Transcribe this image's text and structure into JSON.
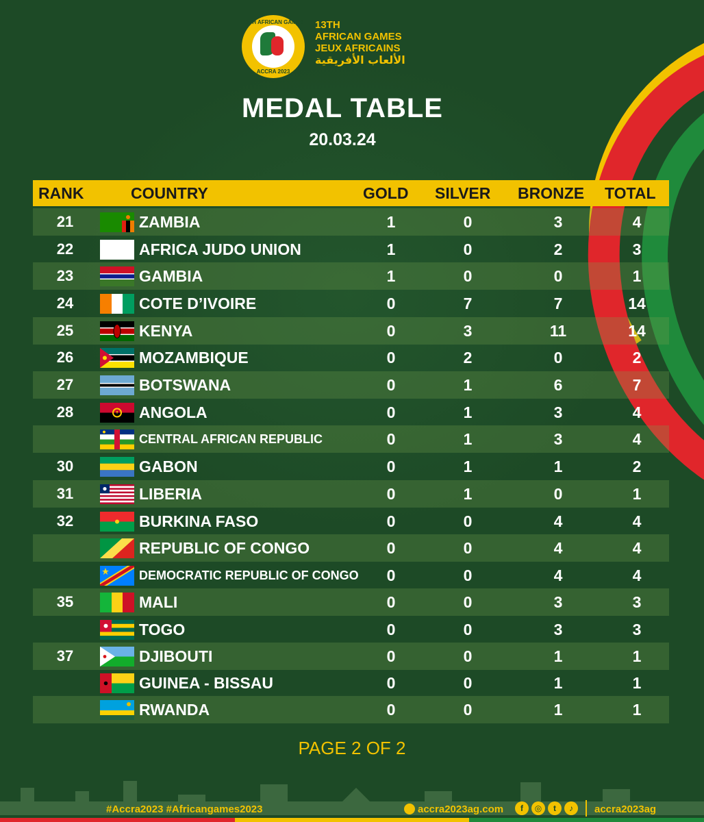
{
  "logo": {
    "ring_top": "13TH AFRICAN GAMES",
    "ring_bottom": "ACCRA 2023"
  },
  "brand": {
    "line1": "13TH",
    "line2": "AFRICAN GAMES",
    "line3": "JEUX AFRICAINS",
    "line4": "الألعاب الأفريقية"
  },
  "title": "MEDAL TABLE",
  "date": "20.03.24",
  "columns": {
    "rank": "RANK",
    "country": "COUNTRY",
    "gold": "GOLD",
    "silver": "SILVER",
    "bronze": "BRONZE",
    "total": "TOTAL"
  },
  "rows": [
    {
      "rank": "21",
      "country": "ZAMBIA",
      "gold": "1",
      "silver": "0",
      "bronze": "3",
      "total": "4",
      "flag": "zambia-flag"
    },
    {
      "rank": "22",
      "country": "AFRICA JUDO UNION",
      "gold": "1",
      "silver": "0",
      "bronze": "2",
      "total": "3",
      "flag": "blank-flag"
    },
    {
      "rank": "23",
      "country": "GAMBIA",
      "gold": "1",
      "silver": "0",
      "bronze": "0",
      "total": "1",
      "flag": "gambia-flag"
    },
    {
      "rank": "24",
      "country": "COTE D’IVOIRE",
      "gold": "0",
      "silver": "7",
      "bronze": "7",
      "total": "14",
      "flag": "cote-divoire-flag"
    },
    {
      "rank": "25",
      "country": "KENYA",
      "gold": "0",
      "silver": "3",
      "bronze": "11",
      "total": "14",
      "flag": "kenya-flag"
    },
    {
      "rank": "26",
      "country": "MOZAMBIQUE",
      "gold": "0",
      "silver": "2",
      "bronze": "0",
      "total": "2",
      "flag": "mozambique-flag"
    },
    {
      "rank": "27",
      "country": "BOTSWANA",
      "gold": "0",
      "silver": "1",
      "bronze": "6",
      "total": "7",
      "flag": "botswana-flag"
    },
    {
      "rank": "28",
      "country": "ANGOLA",
      "gold": "0",
      "silver": "1",
      "bronze": "3",
      "total": "4",
      "flag": "angola-flag"
    },
    {
      "rank": "",
      "country": "CENTRAL AFRICAN REPUBLIC",
      "gold": "0",
      "silver": "1",
      "bronze": "3",
      "total": "4",
      "flag": "car-flag"
    },
    {
      "rank": "30",
      "country": "GABON",
      "gold": "0",
      "silver": "1",
      "bronze": "1",
      "total": "2",
      "flag": "gabon-flag"
    },
    {
      "rank": "31",
      "country": "LIBERIA",
      "gold": "0",
      "silver": "1",
      "bronze": "0",
      "total": "1",
      "flag": "liberia-flag"
    },
    {
      "rank": "32",
      "country": "BURKINA FASO",
      "gold": "0",
      "silver": "0",
      "bronze": "4",
      "total": "4",
      "flag": "burkina-faso-flag"
    },
    {
      "rank": "",
      "country": "REPUBLIC OF CONGO",
      "gold": "0",
      "silver": "0",
      "bronze": "4",
      "total": "4",
      "flag": "congo-flag"
    },
    {
      "rank": "",
      "country": "DEMOCRATIC REPUBLIC OF CONGO",
      "gold": "0",
      "silver": "0",
      "bronze": "4",
      "total": "4",
      "flag": "drc-flag"
    },
    {
      "rank": "35",
      "country": "MALI",
      "gold": "0",
      "silver": "0",
      "bronze": "3",
      "total": "3",
      "flag": "mali-flag"
    },
    {
      "rank": "",
      "country": "TOGO",
      "gold": "0",
      "silver": "0",
      "bronze": "3",
      "total": "3",
      "flag": "togo-flag"
    },
    {
      "rank": "37",
      "country": "DJIBOUTI",
      "gold": "0",
      "silver": "0",
      "bronze": "1",
      "total": "1",
      "flag": "djibouti-flag"
    },
    {
      "rank": "",
      "country": "GUINEA - BISSAU",
      "gold": "0",
      "silver": "0",
      "bronze": "1",
      "total": "1",
      "flag": "guinea-bissau-flag"
    },
    {
      "rank": "",
      "country": "RWANDA",
      "gold": "0",
      "silver": "0",
      "bronze": "1",
      "total": "1",
      "flag": "rwanda-flag"
    }
  ],
  "page": "PAGE 2 OF 2",
  "footer": {
    "hashtags": "#Accra2023   #Africangames2023",
    "website": "accra2023ag.com",
    "social_icons": [
      "facebook-icon",
      "instagram-icon",
      "twitter-icon",
      "tiktok-icon"
    ],
    "handle": "accra2023ag"
  },
  "colors": {
    "background": "#1d4a26",
    "accent": "#f2c200",
    "red": "#e0262b",
    "green": "#1f8a3b"
  }
}
